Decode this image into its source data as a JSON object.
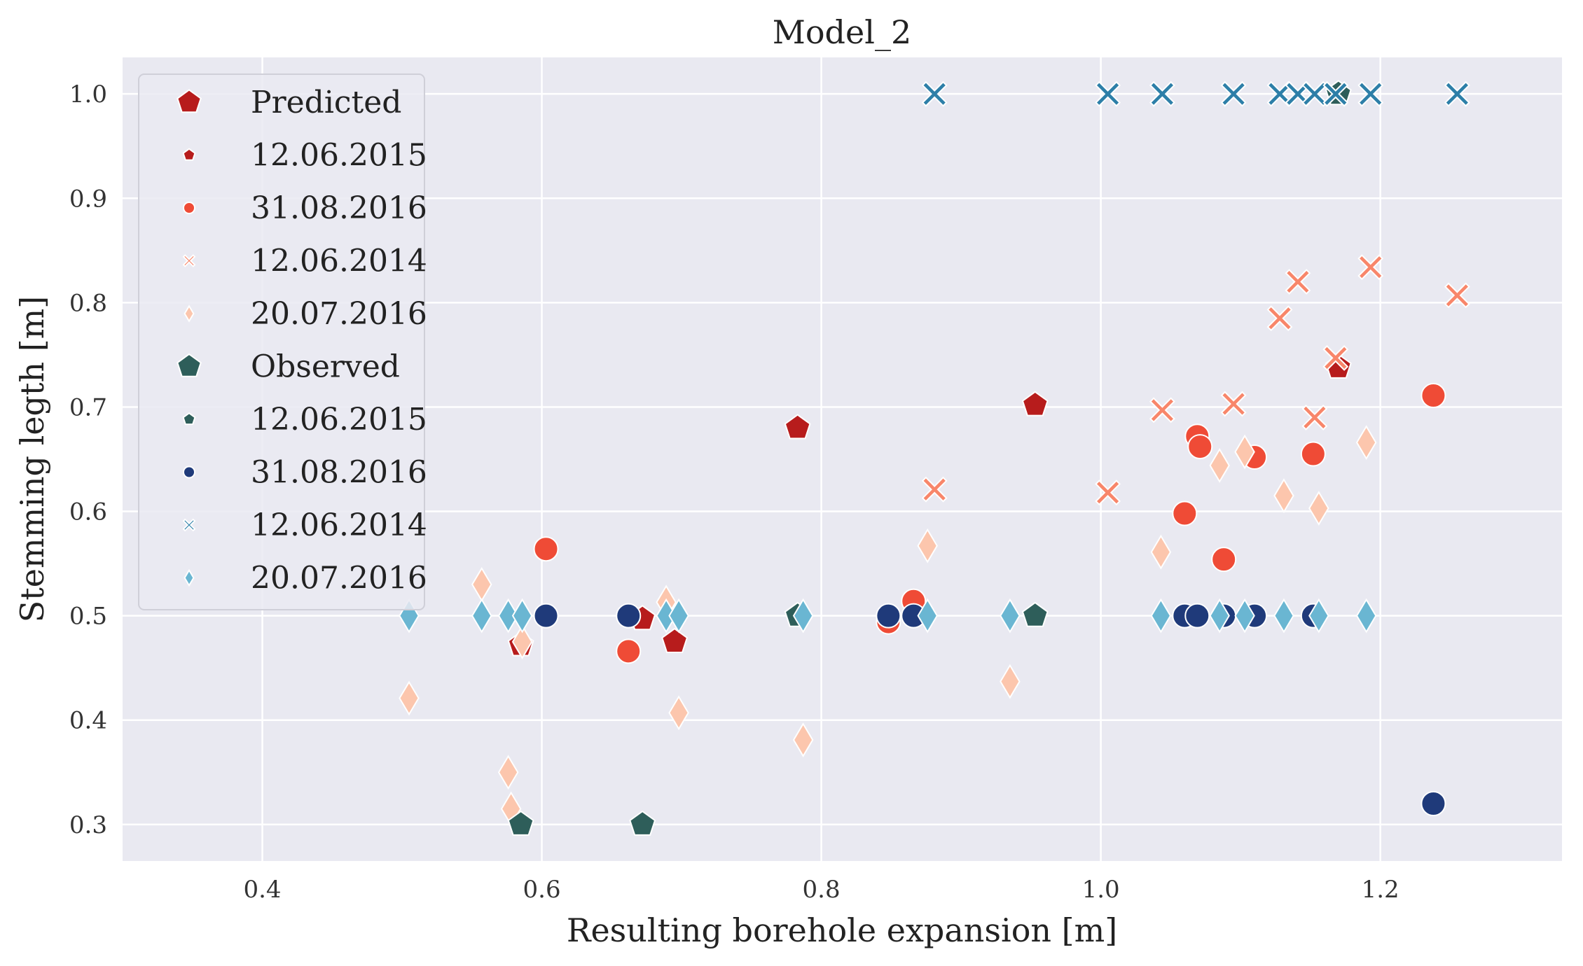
{
  "chart_data": {
    "type": "scatter",
    "title": "Model_2",
    "xlabel": "Resulting borehole expansion [m]",
    "ylabel": "Stemming legth [m]",
    "xlim": [
      0.3,
      1.33
    ],
    "ylim": [
      0.265,
      1.035
    ],
    "xticks": [
      0.4,
      0.6,
      0.8,
      1.0,
      1.2
    ],
    "yticks": [
      0.3,
      0.4,
      0.5,
      0.6,
      0.7,
      0.8,
      0.9,
      1.0
    ],
    "xtick_labels": [
      "0.4",
      "0.6",
      "0.8",
      "1.0",
      "1.2"
    ],
    "ytick_labels": [
      "0.3",
      "0.4",
      "0.5",
      "0.6",
      "0.7",
      "0.8",
      "0.9",
      "1.0"
    ],
    "grid": true,
    "legend_position": "top-left",
    "legend": [
      {
        "label": "Predicted",
        "kind": "header",
        "marker": "pentagon",
        "color": "#b71c1c"
      },
      {
        "label": "12.06.2015",
        "kind": "entry",
        "marker": "pentagon",
        "color": "#b71c1c"
      },
      {
        "label": "31.08.2016",
        "kind": "entry",
        "marker": "circle",
        "color": "#ef4b36"
      },
      {
        "label": "12.06.2014",
        "kind": "entry",
        "marker": "x",
        "color": "#f8866a"
      },
      {
        "label": "20.07.2016",
        "kind": "entry",
        "marker": "diamond",
        "color": "#fcc6ad"
      },
      {
        "label": "Observed",
        "kind": "header",
        "marker": "pentagon",
        "color": "#2e5e5a"
      },
      {
        "label": "12.06.2015",
        "kind": "entry",
        "marker": "pentagon",
        "color": "#2e5e5a"
      },
      {
        "label": "31.08.2016",
        "kind": "entry",
        "marker": "circle",
        "color": "#1f3a7a"
      },
      {
        "label": "12.06.2014",
        "kind": "entry",
        "marker": "x",
        "color": "#2d7fa8"
      },
      {
        "label": "20.07.2016",
        "kind": "entry",
        "marker": "diamond",
        "color": "#6ab6d2"
      }
    ],
    "series": [
      {
        "name": "Predicted 12.06.2015",
        "marker": "pentagon",
        "color": "#b71c1c",
        "x": [
          0.585,
          0.672,
          0.695,
          0.783,
          0.953,
          1.17
        ],
        "y": [
          0.472,
          0.497,
          0.475,
          0.68,
          0.702,
          0.738
        ]
      },
      {
        "name": "Predicted 31.08.2016",
        "marker": "circle",
        "color": "#ef4b36",
        "x": [
          0.603,
          0.662,
          0.848,
          0.866,
          1.06,
          1.069,
          1.071,
          1.088,
          1.11,
          1.152,
          1.238
        ],
        "y": [
          0.564,
          0.466,
          0.494,
          0.514,
          0.598,
          0.672,
          0.662,
          0.554,
          0.652,
          0.655,
          0.711
        ]
      },
      {
        "name": "Predicted 12.06.2014",
        "marker": "x",
        "color": "#f8866a",
        "x": [
          0.881,
          1.005,
          1.044,
          1.095,
          1.128,
          1.141,
          1.153,
          1.168,
          1.193,
          1.255
        ],
        "y": [
          0.621,
          0.618,
          0.697,
          0.703,
          0.785,
          0.82,
          0.69,
          0.747,
          0.834,
          0.807
        ]
      },
      {
        "name": "Predicted 20.07.2016",
        "marker": "diamond",
        "color": "#fcc6ad",
        "x": [
          0.505,
          0.557,
          0.576,
          0.578,
          0.586,
          0.689,
          0.698,
          0.787,
          0.876,
          0.935,
          1.043,
          1.085,
          1.103,
          1.131,
          1.156,
          1.19
        ],
        "y": [
          0.421,
          0.53,
          0.35,
          0.315,
          0.475,
          0.513,
          0.407,
          0.381,
          0.567,
          0.437,
          0.561,
          0.644,
          0.657,
          0.615,
          0.603,
          0.666
        ]
      },
      {
        "name": "Observed 12.06.2015",
        "marker": "pentagon",
        "color": "#2e5e5a",
        "x": [
          0.585,
          0.672,
          0.783,
          0.953,
          1.17
        ],
        "y": [
          0.3,
          0.3,
          0.5,
          0.5,
          1.0
        ]
      },
      {
        "name": "Observed 31.08.2016",
        "marker": "circle",
        "color": "#1f3a7a",
        "x": [
          0.603,
          0.662,
          0.848,
          0.866,
          1.06,
          1.069,
          1.088,
          1.11,
          1.152,
          1.238
        ],
        "y": [
          0.5,
          0.5,
          0.5,
          0.5,
          0.5,
          0.5,
          0.5,
          0.5,
          0.5,
          0.32
        ]
      },
      {
        "name": "Observed 12.06.2014",
        "marker": "x",
        "color": "#2d7fa8",
        "x": [
          0.881,
          1.005,
          1.044,
          1.095,
          1.128,
          1.141,
          1.153,
          1.168,
          1.193,
          1.255
        ],
        "y": [
          1.0,
          1.0,
          1.0,
          1.0,
          1.0,
          1.0,
          1.0,
          1.0,
          1.0,
          1.0
        ]
      },
      {
        "name": "Observed 20.07.2016",
        "marker": "diamond",
        "color": "#6ab6d2",
        "x": [
          0.505,
          0.557,
          0.576,
          0.586,
          0.689,
          0.698,
          0.787,
          0.876,
          0.935,
          1.043,
          1.085,
          1.103,
          1.131,
          1.156,
          1.19
        ],
        "y": [
          0.5,
          0.5,
          0.5,
          0.5,
          0.5,
          0.5,
          0.5,
          0.5,
          0.5,
          0.5,
          0.5,
          0.5,
          0.5,
          0.5,
          0.5
        ]
      }
    ]
  }
}
